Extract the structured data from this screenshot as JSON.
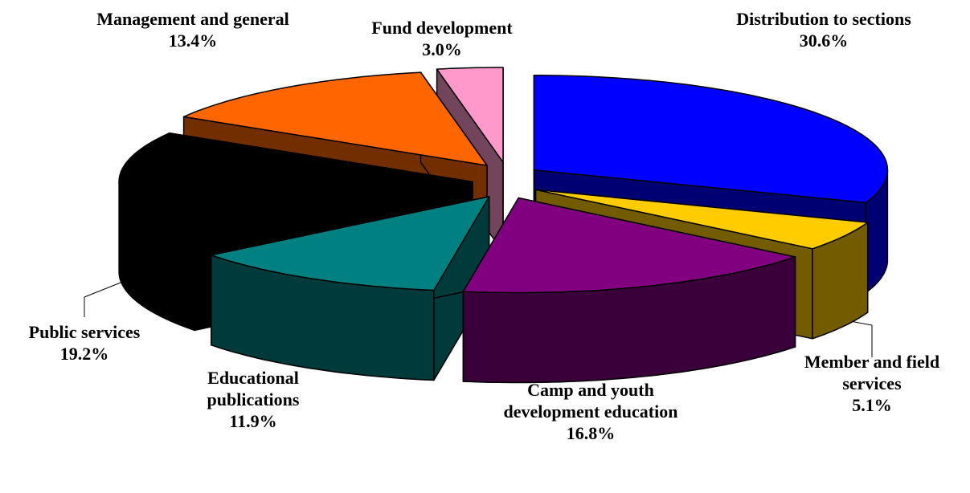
{
  "chart_data": {
    "type": "pie",
    "categories": [
      "Distribution to sections",
      "Member and field services",
      "Camp and youth development education",
      "Educational publications",
      "Public services",
      "Management and general",
      "Fund development"
    ],
    "values": [
      30.6,
      5.1,
      16.8,
      11.9,
      19.2,
      13.4,
      3.0
    ],
    "value_labels": [
      "30.6%",
      "5.1%",
      "16.8%",
      "11.9%",
      "19.2%",
      "13.4%",
      "3.0%"
    ],
    "colors": [
      "#0000ff",
      "#ffcc00",
      "#800080",
      "#008080",
      "#000000",
      "#ff6600",
      "#ff99cc"
    ]
  }
}
